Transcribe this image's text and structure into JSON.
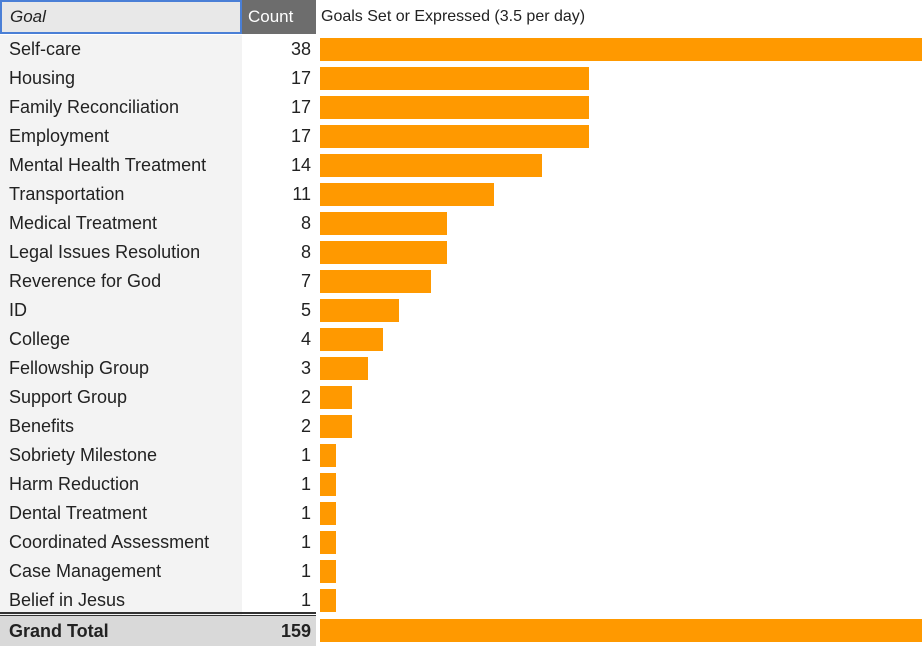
{
  "header": {
    "goal_label": "Goal",
    "count_label": "Count"
  },
  "chart_title": "Goals Set or Expressed (3.5 per day)",
  "bar_color": "#ff9900",
  "chart_data": {
    "type": "bar",
    "title": "Goals Set or Expressed (3.5 per day)",
    "categories": [
      "Self-care",
      "Housing",
      "Family Reconciliation",
      "Employment",
      "Mental Health Treatment",
      "Transportation",
      "Medical Treatment",
      "Legal Issues Resolution",
      "Reverence for God",
      "ID",
      "College",
      "Fellowship Group",
      "Support Group",
      "Benefits",
      "Sobriety Milestone",
      "Harm Reduction",
      "Dental Treatment",
      "Coordinated Assessment",
      "Case Management",
      "Belief in Jesus"
    ],
    "values": [
      38,
      17,
      17,
      17,
      14,
      11,
      8,
      8,
      7,
      5,
      4,
      3,
      2,
      2,
      1,
      1,
      1,
      1,
      1,
      1
    ],
    "xlim": [
      0,
      38
    ],
    "orientation": "horizontal",
    "grid": false
  },
  "rows": [
    {
      "goal": "Self-care",
      "count": "38"
    },
    {
      "goal": "Housing",
      "count": "17"
    },
    {
      "goal": "Family Reconciliation",
      "count": "17"
    },
    {
      "goal": "Employment",
      "count": "17"
    },
    {
      "goal": "Mental Health Treatment",
      "count": "14"
    },
    {
      "goal": "Transportation",
      "count": "11"
    },
    {
      "goal": "Medical Treatment",
      "count": "8"
    },
    {
      "goal": "Legal Issues Resolution",
      "count": "8"
    },
    {
      "goal": "Reverence for God",
      "count": "7"
    },
    {
      "goal": "ID",
      "count": "5"
    },
    {
      "goal": "College",
      "count": "4"
    },
    {
      "goal": "Fellowship Group",
      "count": "3"
    },
    {
      "goal": "Support Group",
      "count": "2"
    },
    {
      "goal": "Benefits",
      "count": "2"
    },
    {
      "goal": "Sobriety Milestone",
      "count": "1"
    },
    {
      "goal": "Harm Reduction",
      "count": "1"
    },
    {
      "goal": "Dental Treatment",
      "count": "1"
    },
    {
      "goal": "Coordinated Assessment",
      "count": "1"
    },
    {
      "goal": "Case Management",
      "count": "1"
    },
    {
      "goal": "Belief in Jesus",
      "count": "1"
    }
  ],
  "total": {
    "label": "Grand Total",
    "count": "159"
  }
}
